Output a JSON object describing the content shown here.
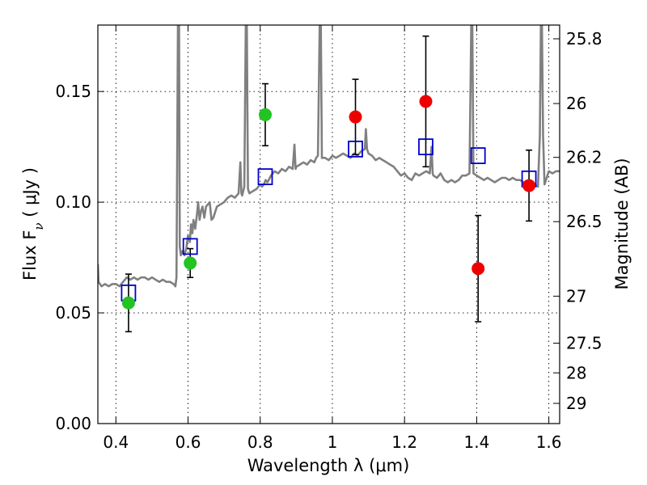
{
  "chart_data": {
    "type": "scatter",
    "xlabel": "Wavelength  λ (μm)",
    "ylabel": "Flux  F",
    "ylabel_sub": "ν",
    "ylabel_unit": "  ( μJy )",
    "y2label": "Magnitude (AB)",
    "xlim": [
      0.35,
      1.63
    ],
    "ylim": [
      0.0,
      0.18
    ],
    "x_ticks": [
      0.4,
      0.6,
      0.8,
      1.0,
      1.2,
      1.4,
      1.6
    ],
    "x_tick_labels": [
      "0.4",
      "0.6",
      "0.8",
      "1",
      "1.2",
      "1.4",
      "1.6"
    ],
    "y_ticks": [
      0.0,
      0.05,
      0.1,
      0.15
    ],
    "y_tick_labels": [
      "0.00",
      "0.05",
      "0.10",
      "0.15"
    ],
    "y2_ticks": [
      25.8,
      26,
      26.2,
      26.5,
      27,
      27.5,
      28,
      29
    ],
    "y2_tick_labels": [
      "25.8",
      "26",
      "26.2",
      "26.5",
      "27",
      "27.5",
      "28",
      "29"
    ],
    "grid": true,
    "colors": {
      "spectrum": "#808080",
      "green_points": "#22c322",
      "red_points": "#ee0000",
      "model_boxes": "#0000cc",
      "error_bars": "#000000"
    },
    "spectrum": [
      [
        0.35,
        0.072
      ],
      [
        0.352,
        0.064
      ],
      [
        0.36,
        0.062
      ],
      [
        0.37,
        0.063
      ],
      [
        0.38,
        0.062
      ],
      [
        0.39,
        0.063
      ],
      [
        0.4,
        0.063
      ],
      [
        0.41,
        0.062
      ],
      [
        0.42,
        0.064
      ],
      [
        0.43,
        0.066
      ],
      [
        0.44,
        0.065
      ],
      [
        0.45,
        0.066
      ],
      [
        0.46,
        0.065
      ],
      [
        0.47,
        0.066
      ],
      [
        0.48,
        0.066
      ],
      [
        0.49,
        0.065
      ],
      [
        0.5,
        0.066
      ],
      [
        0.51,
        0.065
      ],
      [
        0.52,
        0.064
      ],
      [
        0.53,
        0.065
      ],
      [
        0.54,
        0.064
      ],
      [
        0.55,
        0.064
      ],
      [
        0.56,
        0.063
      ],
      [
        0.565,
        0.062
      ],
      [
        0.568,
        0.066
      ],
      [
        0.57,
        0.12
      ],
      [
        0.572,
        0.18
      ],
      [
        0.575,
        0.18
      ],
      [
        0.577,
        0.08
      ],
      [
        0.58,
        0.076
      ],
      [
        0.585,
        0.078
      ],
      [
        0.59,
        0.076
      ],
      [
        0.595,
        0.079
      ],
      [
        0.6,
        0.085
      ],
      [
        0.605,
        0.082
      ],
      [
        0.608,
        0.09
      ],
      [
        0.612,
        0.086
      ],
      [
        0.615,
        0.092
      ],
      [
        0.62,
        0.088
      ],
      [
        0.625,
        0.095
      ],
      [
        0.628,
        0.1
      ],
      [
        0.632,
        0.092
      ],
      [
        0.636,
        0.096
      ],
      [
        0.64,
        0.098
      ],
      [
        0.645,
        0.093
      ],
      [
        0.65,
        0.098
      ],
      [
        0.655,
        0.099
      ],
      [
        0.66,
        0.1
      ],
      [
        0.665,
        0.092
      ],
      [
        0.67,
        0.093
      ],
      [
        0.68,
        0.098
      ],
      [
        0.69,
        0.099
      ],
      [
        0.7,
        0.1
      ],
      [
        0.71,
        0.102
      ],
      [
        0.72,
        0.103
      ],
      [
        0.73,
        0.102
      ],
      [
        0.74,
        0.104
      ],
      [
        0.745,
        0.118
      ],
      [
        0.748,
        0.104
      ],
      [
        0.75,
        0.103
      ],
      [
        0.756,
        0.107
      ],
      [
        0.76,
        0.18
      ],
      [
        0.763,
        0.18
      ],
      [
        0.766,
        0.106
      ],
      [
        0.77,
        0.104
      ],
      [
        0.78,
        0.105
      ],
      [
        0.79,
        0.106
      ],
      [
        0.8,
        0.108
      ],
      [
        0.805,
        0.107
      ],
      [
        0.81,
        0.108
      ],
      [
        0.815,
        0.11
      ],
      [
        0.82,
        0.109
      ],
      [
        0.83,
        0.112
      ],
      [
        0.84,
        0.114
      ],
      [
        0.85,
        0.113
      ],
      [
        0.86,
        0.115
      ],
      [
        0.87,
        0.114
      ],
      [
        0.88,
        0.116
      ],
      [
        0.89,
        0.115
      ],
      [
        0.895,
        0.126
      ],
      [
        0.898,
        0.115
      ],
      [
        0.9,
        0.116
      ],
      [
        0.91,
        0.117
      ],
      [
        0.92,
        0.118
      ],
      [
        0.93,
        0.117
      ],
      [
        0.94,
        0.119
      ],
      [
        0.95,
        0.118
      ],
      [
        0.955,
        0.12
      ],
      [
        0.96,
        0.121
      ],
      [
        0.965,
        0.18
      ],
      [
        0.968,
        0.18
      ],
      [
        0.971,
        0.12
      ],
      [
        0.98,
        0.12
      ],
      [
        0.99,
        0.119
      ],
      [
        1.0,
        0.121
      ],
      [
        1.01,
        0.12
      ],
      [
        1.02,
        0.121
      ],
      [
        1.03,
        0.122
      ],
      [
        1.04,
        0.121
      ],
      [
        1.05,
        0.12
      ],
      [
        1.06,
        0.122
      ],
      [
        1.07,
        0.121
      ],
      [
        1.08,
        0.123
      ],
      [
        1.09,
        0.124
      ],
      [
        1.093,
        0.133
      ],
      [
        1.096,
        0.124
      ],
      [
        1.1,
        0.122
      ],
      [
        1.11,
        0.121
      ],
      [
        1.12,
        0.119
      ],
      [
        1.13,
        0.12
      ],
      [
        1.14,
        0.119
      ],
      [
        1.15,
        0.118
      ],
      [
        1.16,
        0.117
      ],
      [
        1.17,
        0.116
      ],
      [
        1.18,
        0.114
      ],
      [
        1.19,
        0.112
      ],
      [
        1.2,
        0.113
      ],
      [
        1.21,
        0.111
      ],
      [
        1.22,
        0.11
      ],
      [
        1.23,
        0.113
      ],
      [
        1.24,
        0.112
      ],
      [
        1.25,
        0.113
      ],
      [
        1.26,
        0.114
      ],
      [
        1.27,
        0.113
      ],
      [
        1.275,
        0.125
      ],
      [
        1.278,
        0.113
      ],
      [
        1.28,
        0.112
      ],
      [
        1.29,
        0.111
      ],
      [
        1.3,
        0.113
      ],
      [
        1.31,
        0.11
      ],
      [
        1.32,
        0.109
      ],
      [
        1.33,
        0.11
      ],
      [
        1.34,
        0.109
      ],
      [
        1.35,
        0.11
      ],
      [
        1.36,
        0.112
      ],
      [
        1.37,
        0.112
      ],
      [
        1.38,
        0.113
      ],
      [
        1.385,
        0.18
      ],
      [
        1.388,
        0.18
      ],
      [
        1.391,
        0.113
      ],
      [
        1.4,
        0.112
      ],
      [
        1.41,
        0.111
      ],
      [
        1.42,
        0.11
      ],
      [
        1.43,
        0.111
      ],
      [
        1.44,
        0.11
      ],
      [
        1.45,
        0.109
      ],
      [
        1.46,
        0.11
      ],
      [
        1.47,
        0.111
      ],
      [
        1.48,
        0.111
      ],
      [
        1.49,
        0.11
      ],
      [
        1.5,
        0.111
      ],
      [
        1.51,
        0.11
      ],
      [
        1.52,
        0.11
      ],
      [
        1.53,
        0.109
      ],
      [
        1.54,
        0.108
      ],
      [
        1.55,
        0.109
      ],
      [
        1.56,
        0.108
      ],
      [
        1.57,
        0.107
      ],
      [
        1.575,
        0.13
      ],
      [
        1.578,
        0.18
      ],
      [
        1.581,
        0.18
      ],
      [
        1.584,
        0.13
      ],
      [
        1.588,
        0.108
      ],
      [
        1.6,
        0.114
      ],
      [
        1.61,
        0.113
      ],
      [
        1.62,
        0.114
      ],
      [
        1.63,
        0.114
      ]
    ],
    "green_points": [
      {
        "x": 0.435,
        "y": 0.0545,
        "yerr": 0.013
      },
      {
        "x": 0.606,
        "y": 0.0725,
        "yerr": 0.0065
      },
      {
        "x": 0.814,
        "y": 0.1395,
        "yerr": 0.014
      }
    ],
    "red_points": [
      {
        "x": 1.064,
        "y": 0.1385,
        "yerr": 0.017
      },
      {
        "x": 1.259,
        "y": 0.1455,
        "yerr": 0.0295
      },
      {
        "x": 1.404,
        "y": 0.07,
        "yerr": 0.024
      },
      {
        "x": 1.545,
        "y": 0.1075,
        "yerr": 0.016
      }
    ],
    "model_boxes": [
      {
        "x": 0.435,
        "y": 0.059
      },
      {
        "x": 0.606,
        "y": 0.08
      },
      {
        "x": 0.814,
        "y": 0.1115
      },
      {
        "x": 1.064,
        "y": 0.124
      },
      {
        "x": 1.259,
        "y": 0.125
      },
      {
        "x": 1.404,
        "y": 0.121
      },
      {
        "x": 1.545,
        "y": 0.1105
      }
    ]
  }
}
